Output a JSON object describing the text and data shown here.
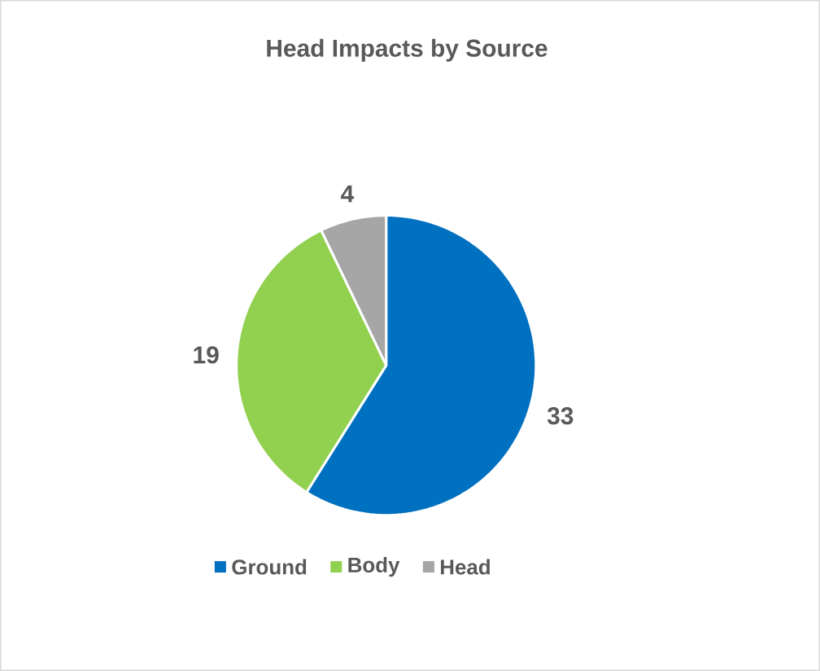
{
  "chart_data": {
    "type": "pie",
    "title": "Head Impacts by Source",
    "categories": [
      "Ground",
      "Body",
      "Head"
    ],
    "values": [
      33,
      19,
      4
    ],
    "colors": [
      "#0070c0",
      "#92d050",
      "#a6a6a6"
    ],
    "data_labels": true,
    "legend": "bottom"
  }
}
